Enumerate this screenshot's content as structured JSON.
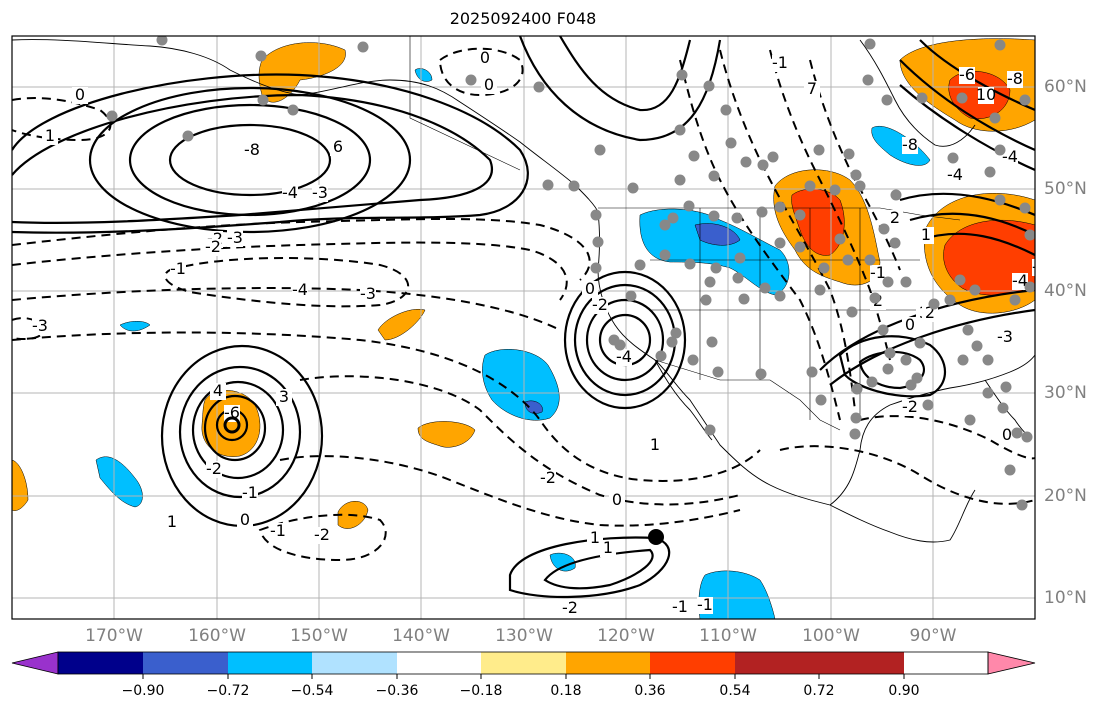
{
  "title": "2025092400 F048",
  "longitude_labels": [
    "170°W",
    "160°W",
    "150°W",
    "140°W",
    "130°W",
    "120°W",
    "110°W",
    "100°W",
    "90°W"
  ],
  "latitude_labels": [
    "60°N",
    "50°N",
    "40°N",
    "30°N",
    "20°N",
    "10°N"
  ],
  "colorbar": {
    "tick_labels": [
      "−0.90",
      "−0.72",
      "−0.54",
      "−0.36",
      "−0.18",
      "0.18",
      "0.36",
      "0.54",
      "0.72",
      "0.90"
    ],
    "colors": [
      "#9932CC",
      "#00008B",
      "#3A5FCD",
      "#00BFFF",
      "#B0E2FF",
      "#FFFFFF",
      "#FFEC8B",
      "#FFA500",
      "#FF3E00",
      "#B22222",
      "#FF88AA"
    ]
  },
  "contour_labels": [
    "0",
    "0",
    "1",
    "0",
    "-8",
    "6",
    "-4",
    "-3",
    "-2",
    "-1",
    "-2",
    "-3",
    "-4",
    "-3",
    "-3",
    "-4",
    "-6",
    "4",
    "3",
    "-2",
    "-1",
    "1",
    "0",
    "-2",
    "-1",
    "-2",
    "-2",
    "0",
    "1",
    "-1",
    "0",
    "-2",
    "-1",
    "3",
    "2",
    "-4",
    "7",
    "-1",
    "-8",
    "-6",
    "10",
    "-4",
    "-8",
    "-4",
    "2",
    "1",
    "-3",
    "-2",
    "0",
    "2",
    "1",
    "-1",
    "1",
    "-4",
    "0"
  ],
  "contour_label_colors": {
    "positive": "#000000",
    "negative": "#000000"
  },
  "station_marker_color": "#888888"
}
